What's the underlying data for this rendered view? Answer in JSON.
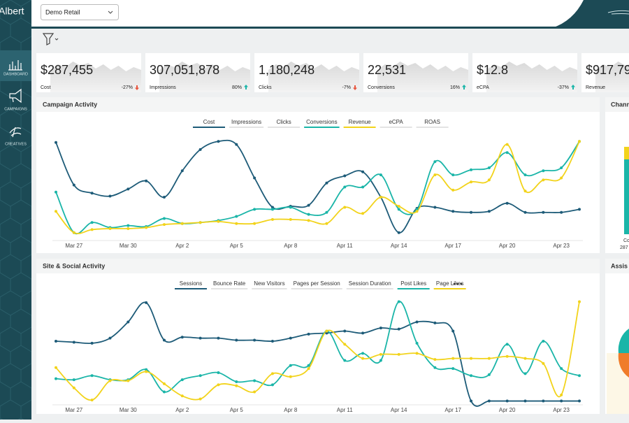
{
  "header": {
    "logo": "Albert",
    "account": "Demo Retail"
  },
  "nav": [
    {
      "label": "DASHBOARD",
      "selected": true
    },
    {
      "label": "CAMPAIGNS",
      "selected": false
    },
    {
      "label": "CREATIVES",
      "selected": false
    }
  ],
  "kpis": [
    {
      "value": "$287,455",
      "label": "Cost",
      "change": "-27%",
      "trend": "down"
    },
    {
      "value": "307,051,878",
      "label": "Impressions",
      "change": "80%",
      "trend": "up"
    },
    {
      "value": "1,180,248",
      "label": "Clicks",
      "change": "-7%",
      "trend": "down"
    },
    {
      "value": "22,531",
      "label": "Conversions",
      "change": "16%",
      "trend": "up"
    },
    {
      "value": "$12.8",
      "label": "eCPA",
      "change": "-37%",
      "trend": "up"
    },
    {
      "value": "$917,79",
      "label": "Revenue"
    }
  ],
  "campaign_chart": {
    "type": "line",
    "title": "Campaign Activity",
    "ylim": [
      0,
      100
    ],
    "categories": [
      null,
      "Mar 27",
      null,
      null,
      "Mar 30",
      null,
      null,
      "Apr 2",
      null,
      null,
      "Apr 5",
      null,
      null,
      "Apr 8",
      null,
      null,
      "Apr 11",
      null,
      null,
      "Apr 14",
      null,
      null,
      "Apr 17",
      null,
      null,
      "Apr 20",
      null,
      null,
      "Apr 23",
      null
    ],
    "tabs": [
      {
        "name": "Cost",
        "color": "#1d5b78",
        "values": [
          94,
          52,
          44,
          41,
          48,
          56,
          40,
          66,
          87,
          95,
          92,
          59,
          30,
          31,
          32,
          54,
          61,
          65,
          40,
          5,
          29,
          30,
          26,
          25,
          26,
          34,
          25,
          25,
          25,
          28
        ]
      },
      {
        "name": "Impressions"
      },
      {
        "name": "Clicks"
      },
      {
        "name": "Conversions",
        "color": "#1ab5a8",
        "values": [
          45,
          5,
          15,
          10,
          12,
          11,
          19,
          14,
          15,
          17,
          21,
          28,
          28,
          30,
          23,
          25,
          50,
          50,
          62,
          28,
          28,
          75,
          62,
          67,
          69,
          84,
          62,
          66,
          69,
          95
        ]
      },
      {
        "name": "Revenue",
        "color": "#f2d31b",
        "values": [
          26,
          5,
          8,
          9,
          9,
          10,
          13,
          14,
          15,
          16,
          14,
          14,
          18,
          18,
          17,
          14,
          30,
          24,
          40,
          31,
          26,
          62,
          47,
          55,
          57,
          92,
          46,
          57,
          59,
          95
        ]
      },
      {
        "name": "eCPA"
      },
      {
        "name": "ROAS"
      }
    ]
  },
  "site_chart": {
    "type": "line",
    "title": "Site & Social Activity",
    "ylim": [
      0,
      100
    ],
    "categories": [
      null,
      "Mar 27",
      null,
      null,
      "Mar 30",
      null,
      null,
      "Apr 2",
      null,
      null,
      "Apr 5",
      null,
      null,
      "Apr 8",
      null,
      null,
      "Apr 11",
      null,
      null,
      "Apr 14",
      null,
      null,
      "Apr 17",
      null,
      null,
      "Apr 20",
      null,
      null,
      "Apr 23",
      null
    ],
    "tabs": [
      {
        "name": "Sessions",
        "color": "#1d5b78",
        "values": [
          60,
          59,
          58,
          63,
          79,
          98,
          61,
          64,
          63,
          63,
          61,
          61,
          60,
          63,
          67,
          68,
          70,
          68,
          73,
          72,
          79,
          78,
          70,
          1,
          1,
          1,
          1,
          1,
          1,
          1
        ]
      },
      {
        "name": "Bounce Rate"
      },
      {
        "name": "New Visitors"
      },
      {
        "name": "Pages per Session"
      },
      {
        "name": "Session Duration"
      },
      {
        "name": "Post Likes",
        "color": "#1ab5a8",
        "values": [
          23,
          22,
          26,
          22,
          22,
          32,
          10,
          22,
          26,
          29,
          20,
          21,
          17,
          36,
          36,
          70,
          41,
          48,
          41,
          99,
          58,
          34,
          33,
          26,
          27,
          57,
          28,
          60,
          33,
          26
        ]
      },
      {
        "name": "Page Likes",
        "color": "#f2d31b",
        "values": [
          34,
          14,
          2,
          21,
          21,
          30,
          18,
          6,
          3,
          17,
          16,
          10,
          28,
          25,
          33,
          70,
          57,
          43,
          47,
          47,
          48,
          42,
          43,
          43,
          43,
          45,
          43,
          38,
          7,
          99
        ]
      }
    ]
  },
  "side_panels": {
    "channel_title": "Chann",
    "channel_label": "Co",
    "channel_value": "287",
    "assist_title": "Assis"
  }
}
